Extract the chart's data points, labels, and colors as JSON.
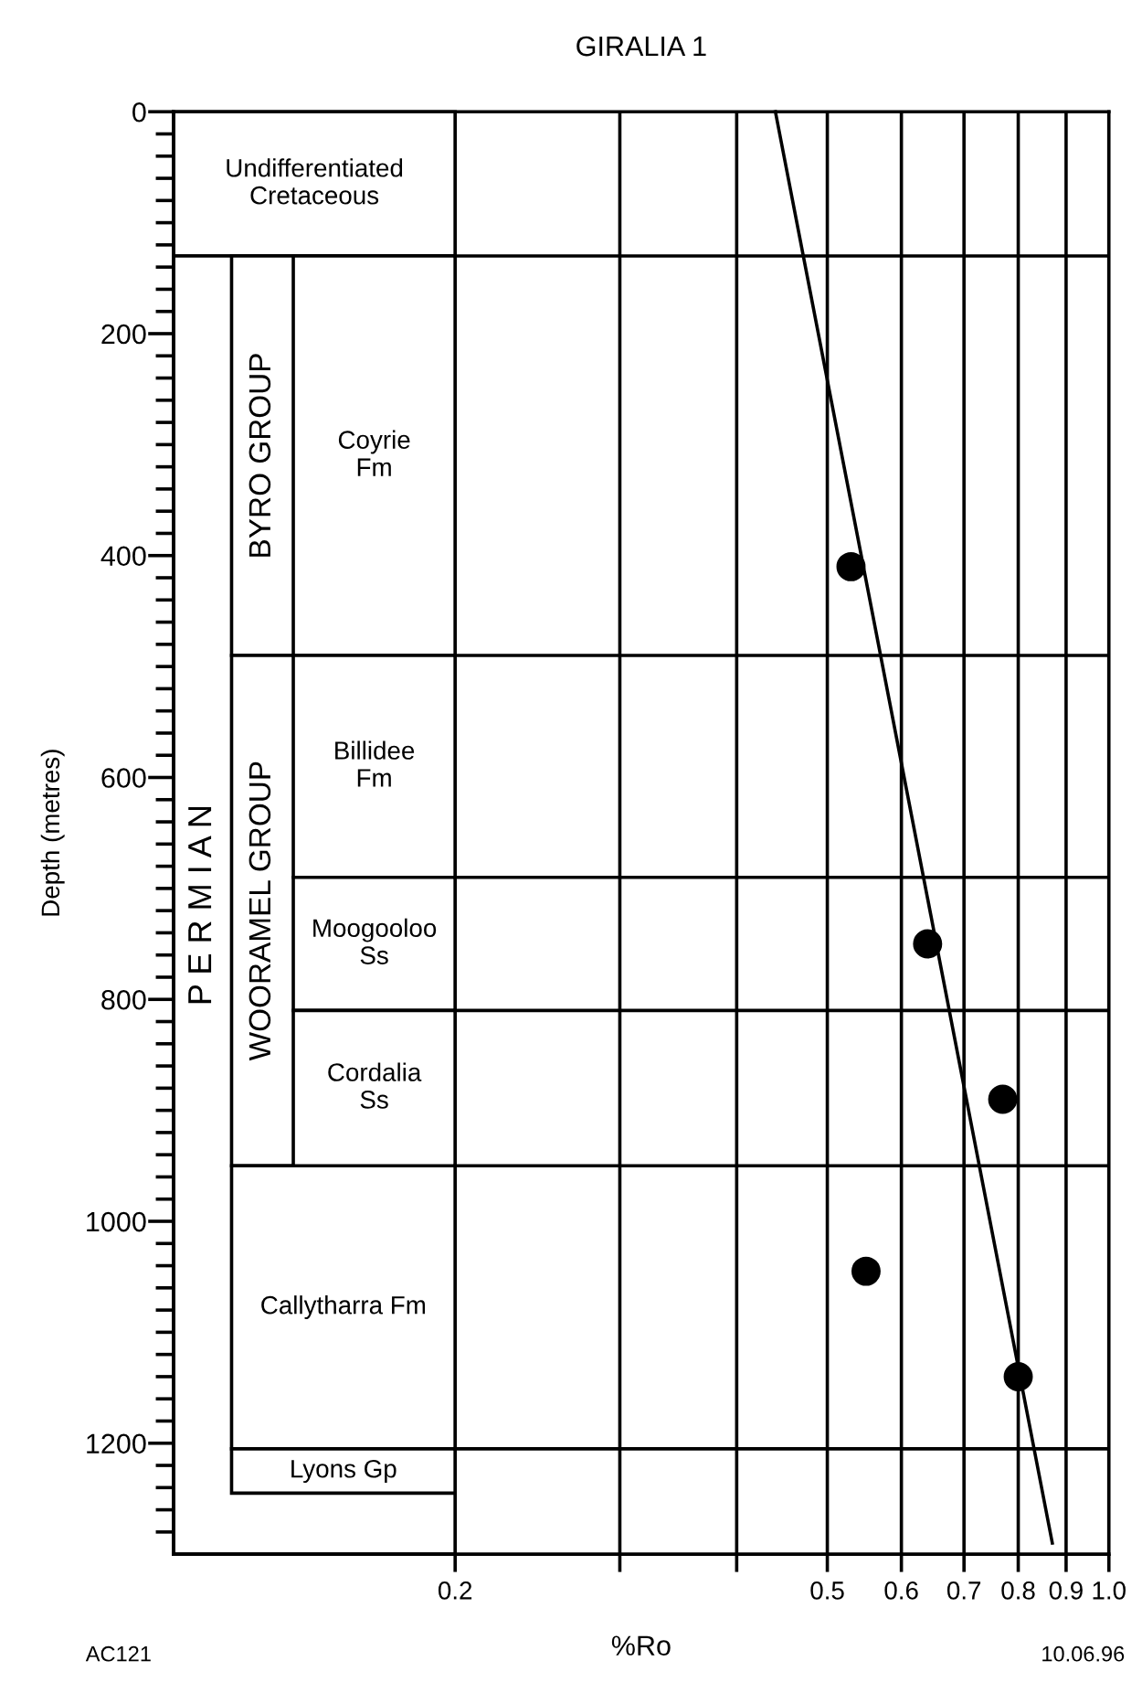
{
  "chart_data": {
    "type": "scatter",
    "title": "GIRALIA 1",
    "xlabel": "%Ro",
    "ylabel": "Depth (metres)",
    "log": "x",
    "grid": "x",
    "xlim": [
      0.1,
      1.0
    ],
    "xticks": [
      0.2,
      {
        "value": 0.3,
        "label": null
      },
      {
        "value": 0.4,
        "label": null
      },
      0.5,
      0.6,
      0.7,
      0.8,
      0.9,
      {
        "value": 1.0,
        "label": "1.0"
      }
    ],
    "ylim": [
      1300,
      0
    ],
    "yticks": [
      0,
      {
        "value": 20,
        "label": null
      },
      {
        "value": 40,
        "label": null
      },
      {
        "value": 60,
        "label": null
      },
      {
        "value": 80,
        "label": null
      },
      {
        "value": 100,
        "label": null
      },
      {
        "value": 120,
        "label": null
      },
      {
        "value": 140,
        "label": null
      },
      {
        "value": 160,
        "label": null
      },
      {
        "value": 180,
        "label": null
      },
      200,
      {
        "value": 220,
        "label": null
      },
      {
        "value": 240,
        "label": null
      },
      {
        "value": 260,
        "label": null
      },
      {
        "value": 280,
        "label": null
      },
      {
        "value": 300,
        "label": null
      },
      {
        "value": 320,
        "label": null
      },
      {
        "value": 340,
        "label": null
      },
      {
        "value": 360,
        "label": null
      },
      {
        "value": 380,
        "label": null
      },
      400,
      {
        "value": 420,
        "label": null
      },
      {
        "value": 440,
        "label": null
      },
      {
        "value": 460,
        "label": null
      },
      {
        "value": 480,
        "label": null
      },
      {
        "value": 500,
        "label": null
      },
      {
        "value": 520,
        "label": null
      },
      {
        "value": 540,
        "label": null
      },
      {
        "value": 560,
        "label": null
      },
      {
        "value": 580,
        "label": null
      },
      600,
      {
        "value": 620,
        "label": null
      },
      {
        "value": 640,
        "label": null
      },
      {
        "value": 660,
        "label": null
      },
      {
        "value": 680,
        "label": null
      },
      {
        "value": 700,
        "label": null
      },
      {
        "value": 720,
        "label": null
      },
      {
        "value": 740,
        "label": null
      },
      {
        "value": 760,
        "label": null
      },
      {
        "value": 780,
        "label": null
      },
      800,
      {
        "value": 820,
        "label": null
      },
      {
        "value": 840,
        "label": null
      },
      {
        "value": 860,
        "label": null
      },
      {
        "value": 880,
        "label": null
      },
      {
        "value": 900,
        "label": null
      },
      {
        "value": 920,
        "label": null
      },
      {
        "value": 940,
        "label": null
      },
      {
        "value": 960,
        "label": null
      },
      {
        "value": 980,
        "label": null
      },
      1000,
      {
        "value": 1020,
        "label": null
      },
      {
        "value": 1040,
        "label": null
      },
      {
        "value": 1060,
        "label": null
      },
      {
        "value": 1080,
        "label": null
      },
      {
        "value": 1100,
        "label": null
      },
      {
        "value": 1120,
        "label": null
      },
      {
        "value": 1140,
        "label": null
      },
      {
        "value": 1160,
        "label": null
      },
      {
        "value": 1180,
        "label": null
      },
      1200,
      {
        "value": 1220,
        "label": null
      },
      {
        "value": 1240,
        "label": null
      },
      {
        "value": 1260,
        "label": null
      },
      {
        "value": 1280,
        "label": null
      }
    ],
    "series": [
      {
        "color": "#000000",
        "marker": "circle",
        "x": [
          0.53,
          0.64,
          0.77,
          0.55,
          0.8
        ],
        "values": [
          410,
          750,
          890,
          1045,
          1140
        ]
      },
      {
        "type": "line",
        "marker": "none",
        "color": "#000000",
        "x": [
          0.44,
          0.87
        ],
        "values": [
          0,
          1290
        ]
      }
    ],
    "bands": [
      {
        "axis": "y",
        "from": 0,
        "to": 130,
        "label": "Undifferentiated\nCretaceous",
        "color": "#ffffff"
      },
      {
        "axis": "y",
        "from": 130,
        "to": 1300,
        "label": "P E R M I A N",
        "color": "#ffffff"
      },
      {
        "axis": "y",
        "from": 130,
        "to": 490,
        "label": "BYRO GROUP",
        "color": "#ffffff"
      },
      {
        "axis": "y",
        "from": 130,
        "to": 490,
        "label": "Coyrie\nFm",
        "color": "#ffffff"
      },
      {
        "axis": "y",
        "from": 490,
        "to": 950,
        "label": "WOORAMEL GROUP",
        "color": "#ffffff"
      },
      {
        "axis": "y",
        "from": 490,
        "to": 690,
        "label": "Billidee\nFm",
        "color": "#ffffff"
      },
      {
        "axis": "y",
        "from": 690,
        "to": 810,
        "label": "Moogooloo\nSs",
        "color": "#ffffff"
      },
      {
        "axis": "y",
        "from": 810,
        "to": 950,
        "label": "Cordalia\nSs",
        "color": "#ffffff"
      },
      {
        "axis": "y",
        "from": 950,
        "to": 1205,
        "label": "Callytharra Fm",
        "color": "#ffffff"
      },
      {
        "axis": "y",
        "from": 1205,
        "to": 1245,
        "label": "Lyons Gp",
        "color": "#ffffff"
      }
    ],
    "ref_lines": [
      {
        "axis": "y",
        "value": 130,
        "label": null
      },
      {
        "axis": "y",
        "value": 490,
        "label": null
      },
      {
        "axis": "y",
        "value": 690,
        "label": null
      },
      {
        "axis": "y",
        "value": 810,
        "label": null
      },
      {
        "axis": "y",
        "value": 950,
        "label": null
      },
      {
        "axis": "y",
        "value": 1205,
        "label": null
      }
    ],
    "annotations": [
      "AC121",
      "10.06.96"
    ]
  }
}
